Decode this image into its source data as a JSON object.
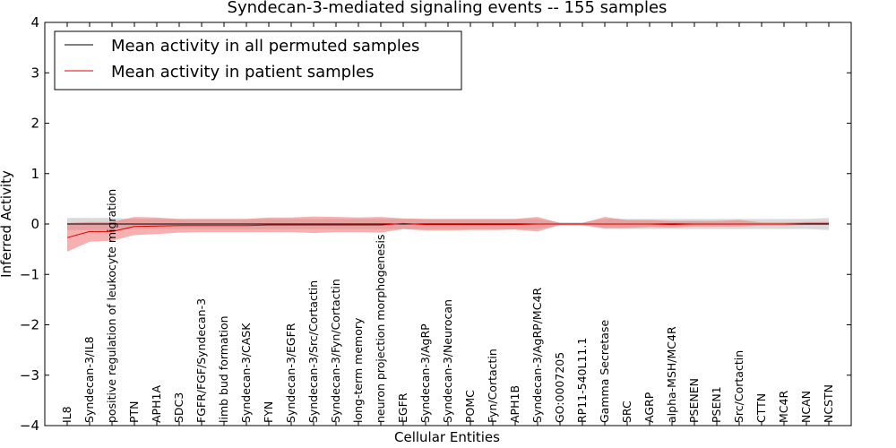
{
  "chart_data": {
    "type": "line",
    "title": "Syndecan-3-mediated signaling events -- 155 samples",
    "xlabel": "Cellular Entities",
    "ylabel": "Inferred Activity",
    "ylim": [
      -4,
      4
    ],
    "yticks": [
      -4,
      -3,
      -2,
      -1,
      0,
      1,
      2,
      3,
      4
    ],
    "ytick_labels": [
      "−4",
      "−3",
      "−2",
      "−1",
      "0",
      "1",
      "2",
      "3",
      "4"
    ],
    "legend_position": "top-left",
    "categories": [
      "IL8",
      "Syndecan-3/IL8",
      "positive regulation of leukocyte migration",
      "PTN",
      "APH1A",
      "SDC3",
      "FGFR/FGF/Syndecan-3",
      "limb bud formation",
      "Syndecan-3/CASK",
      "FYN",
      "Syndecan-3/EGFR",
      "Syndecan-3/Src/Cortactin",
      "Syndecan-3/Fyn/Cortactin",
      "long-term memory",
      "neuron projection morphogenesis",
      "EGFR",
      "Syndecan-3/AgRP",
      "Syndecan-3/Neurocan",
      "POMC",
      "Fyn/Cortactin",
      "APH1B",
      "Syndecan-3/AgRP/MC4R",
      "GO:0007205",
      "RP11-540L11.1",
      "Gamma Secretase",
      "SRC",
      "AGRP",
      "alpha-MSH/MC4R",
      "PSENEN",
      "PSEN1",
      "Src/Cortactin",
      "CTTN",
      "MC4R",
      "NCAN",
      "NCSTN"
    ],
    "series": [
      {
        "name": "Mean activity in all permuted samples",
        "color": "#000000",
        "band_color": "#bbbbbb",
        "values": [
          0.0,
          0.0,
          0.0,
          0.0,
          0.0,
          0.0,
          0.0,
          0.0,
          0.0,
          0.0,
          0.0,
          0.0,
          0.0,
          0.0,
          0.0,
          0.0,
          0.0,
          0.0,
          0.0,
          0.0,
          0.0,
          0.0,
          0.0,
          0.0,
          0.0,
          0.0,
          0.0,
          0.0,
          0.0,
          0.0,
          0.0,
          0.0,
          0.0,
          0.0,
          0.0
        ],
        "lower": [
          -0.12,
          -0.12,
          -0.12,
          -0.1,
          -0.1,
          -0.1,
          -0.1,
          -0.1,
          -0.1,
          -0.1,
          -0.1,
          -0.1,
          -0.1,
          -0.1,
          -0.1,
          -0.1,
          -0.1,
          -0.1,
          -0.1,
          -0.1,
          -0.1,
          -0.1,
          -0.03,
          -0.03,
          -0.1,
          -0.1,
          -0.1,
          -0.1,
          -0.1,
          -0.1,
          -0.1,
          -0.1,
          -0.1,
          -0.1,
          -0.12
        ],
        "upper": [
          0.12,
          0.12,
          0.12,
          0.1,
          0.1,
          0.1,
          0.1,
          0.1,
          0.1,
          0.1,
          0.1,
          0.1,
          0.1,
          0.1,
          0.1,
          0.1,
          0.1,
          0.1,
          0.1,
          0.1,
          0.1,
          0.1,
          0.03,
          0.03,
          0.1,
          0.1,
          0.1,
          0.1,
          0.1,
          0.1,
          0.1,
          0.1,
          0.1,
          0.1,
          0.12
        ]
      },
      {
        "name": "Mean activity in patient samples",
        "color": "#dd0000",
        "band_color": "#f07c7c",
        "values": [
          -0.27,
          -0.15,
          -0.15,
          -0.05,
          -0.04,
          -0.03,
          -0.03,
          -0.03,
          -0.03,
          -0.02,
          -0.02,
          -0.02,
          -0.02,
          -0.02,
          -0.02,
          0.01,
          -0.01,
          -0.01,
          -0.01,
          -0.01,
          -0.01,
          0.0,
          0.0,
          0.0,
          0.0,
          0.0,
          0.0,
          -0.01,
          0.0,
          0.0,
          0.0,
          0.0,
          0.0,
          0.01,
          0.01
        ],
        "lower": [
          -0.55,
          -0.35,
          -0.33,
          -0.22,
          -0.2,
          -0.17,
          -0.16,
          -0.16,
          -0.16,
          -0.16,
          -0.16,
          -0.18,
          -0.16,
          -0.16,
          -0.17,
          -0.1,
          -0.13,
          -0.13,
          -0.12,
          -0.12,
          -0.11,
          -0.15,
          -0.02,
          -0.02,
          -0.08,
          -0.08,
          -0.06,
          -0.07,
          -0.05,
          -0.05,
          -0.05,
          -0.03,
          -0.03,
          -0.02,
          -0.02
        ],
        "upper": [
          0.02,
          0.04,
          0.04,
          0.14,
          0.13,
          0.1,
          0.1,
          0.1,
          0.1,
          0.13,
          0.13,
          0.15,
          0.14,
          0.13,
          0.14,
          0.11,
          0.1,
          0.1,
          0.1,
          0.1,
          0.1,
          0.14,
          0.02,
          0.02,
          0.14,
          0.08,
          0.08,
          0.06,
          0.06,
          0.06,
          0.08,
          0.03,
          0.03,
          0.04,
          0.04
        ]
      }
    ]
  }
}
